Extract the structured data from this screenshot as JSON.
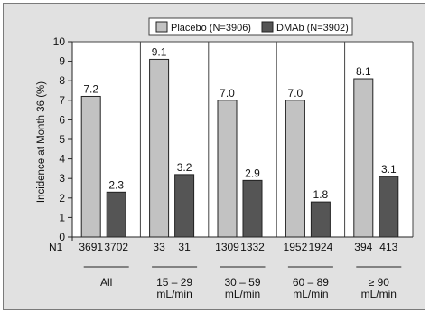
{
  "chart_data": {
    "type": "bar",
    "title": "",
    "ylabel": "Incidence at Month 36 (%)",
    "xlabel": "",
    "ylim": [
      0,
      10
    ],
    "yticks": [
      "0",
      "1",
      "2",
      "3",
      "4",
      "5",
      "6",
      "7",
      "8",
      "9",
      "10"
    ],
    "grid": false,
    "legend_position": "top-center",
    "n_row_label": "N1",
    "categories": [
      "All",
      "15 – 29 mL/min",
      "30 – 59 mL/min",
      "60 – 89 mL/min",
      "≥ 90 mL/min"
    ],
    "category_lines": [
      [
        "All"
      ],
      [
        "15 – 29",
        "mL/min"
      ],
      [
        "30 – 59",
        "mL/min"
      ],
      [
        "60 – 89",
        "mL/min"
      ],
      [
        "≥ 90",
        "mL/min"
      ]
    ],
    "series": [
      {
        "name": "Placebo (N=3906)",
        "color": "#c2c2c2",
        "values": [
          7.2,
          9.1,
          7.0,
          7.0,
          8.1
        ],
        "value_labels": [
          "7.2",
          "9.1",
          "7.0",
          "7.0",
          "8.1"
        ],
        "n": [
          "3691",
          "33",
          "1309",
          "1952",
          "394"
        ]
      },
      {
        "name": "DMAb (N=3902)",
        "color": "#555555",
        "values": [
          2.3,
          3.2,
          2.9,
          1.8,
          3.1
        ],
        "value_labels": [
          "2.3",
          "3.2",
          "2.9",
          "1.8",
          "3.1"
        ],
        "n": [
          "3702",
          "31",
          "1332",
          "1924",
          "413"
        ]
      }
    ]
  }
}
